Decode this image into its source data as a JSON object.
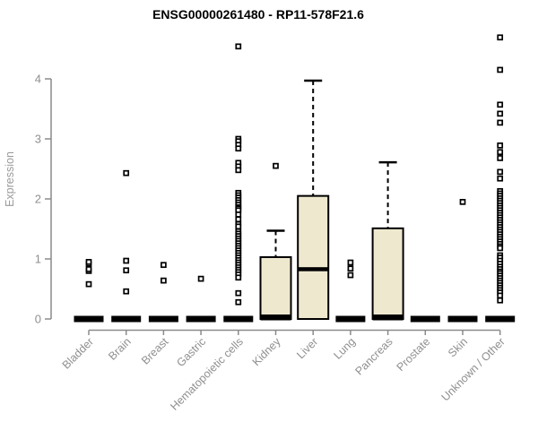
{
  "chart_data": {
    "type": "boxplot",
    "title": "ENSG00000261480 - RP11-578F21.6",
    "ylabel": "Expression",
    "xlabel": "",
    "yticks": [
      0,
      1,
      2,
      3,
      4
    ],
    "ylim": [
      0,
      4.75
    ],
    "grid": false,
    "legend": "none",
    "categories": [
      "Bladder",
      "Brain",
      "Breast",
      "Gastric",
      "Hematopoietic cells",
      "Kidney",
      "Liver",
      "Lung",
      "Pancreas",
      "Prostate",
      "Skin",
      "Unknown / Other"
    ],
    "boxes": [
      {
        "category": "Bladder",
        "q1": 0,
        "median": 0,
        "q3": 0,
        "whisker_low": 0,
        "whisker_high": 0,
        "outliers": [
          0.58,
          0.8,
          0.83,
          0.92,
          0.95
        ]
      },
      {
        "category": "Brain",
        "q1": 0,
        "median": 0,
        "q3": 0,
        "whisker_low": 0,
        "whisker_high": 0,
        "outliers": [
          0.46,
          0.81,
          0.97,
          2.43
        ]
      },
      {
        "category": "Breast",
        "q1": 0,
        "median": 0,
        "q3": 0,
        "whisker_low": 0,
        "whisker_high": 0,
        "outliers": [
          0.64,
          0.9
        ]
      },
      {
        "category": "Gastric",
        "q1": 0,
        "median": 0,
        "q3": 0,
        "whisker_low": 0,
        "whisker_high": 0,
        "outliers": [
          0.67
        ]
      },
      {
        "category": "Hematopoietic cells",
        "q1": 0,
        "median": 0,
        "q3": 0,
        "whisker_low": 0,
        "whisker_high": 0,
        "outliers": [
          4.54,
          3.0,
          2.96,
          2.9,
          2.84,
          2.6,
          2.54,
          2.48,
          2.1,
          2.06,
          2.02,
          1.98,
          1.94,
          1.9,
          1.86,
          1.84,
          1.81,
          1.74,
          1.66,
          1.58,
          1.54,
          1.46,
          1.42,
          1.38,
          1.34,
          1.3,
          1.26,
          1.22,
          1.18,
          1.14,
          1.1,
          1.06,
          1.02,
          0.98,
          0.94,
          0.9,
          0.86,
          0.82,
          0.78,
          0.74,
          0.69,
          0.43,
          0.28
        ]
      },
      {
        "category": "Kidney",
        "q1": 0,
        "median": 0.02,
        "q3": 1.03,
        "whisker_low": 0,
        "whisker_high": 1.47,
        "outliers": [
          2.55
        ]
      },
      {
        "category": "Liver",
        "q1": 0,
        "median": 0.83,
        "q3": 2.05,
        "whisker_low": 0,
        "whisker_high": 3.97,
        "outliers": []
      },
      {
        "category": "Lung",
        "q1": 0,
        "median": 0,
        "q3": 0,
        "whisker_low": 0,
        "whisker_high": 0,
        "outliers": [
          0.73,
          0.84,
          0.94
        ]
      },
      {
        "category": "Pancreas",
        "q1": 0,
        "median": 0.02,
        "q3": 1.51,
        "whisker_low": 0,
        "whisker_high": 2.61,
        "outliers": []
      },
      {
        "category": "Prostate",
        "q1": 0,
        "median": 0,
        "q3": 0,
        "whisker_low": 0,
        "whisker_high": 0,
        "outliers": []
      },
      {
        "category": "Skin",
        "q1": 0,
        "median": 0,
        "q3": 0,
        "whisker_low": 0,
        "whisker_high": 0,
        "outliers": [
          1.95
        ]
      },
      {
        "category": "Unknown / Other",
        "q1": 0,
        "median": 0,
        "q3": 0,
        "whisker_low": 0,
        "whisker_high": 0,
        "outliers": [
          4.69,
          4.15,
          3.57,
          3.42,
          3.27,
          2.89,
          2.78,
          2.68,
          2.45,
          2.34,
          2.13,
          2.09,
          2.05,
          2.01,
          1.97,
          1.93,
          1.89,
          1.85,
          1.81,
          1.77,
          1.73,
          1.69,
          1.65,
          1.61,
          1.57,
          1.53,
          1.49,
          1.45,
          1.41,
          1.37,
          1.33,
          1.29,
          1.25,
          1.21,
          1.18,
          1.06,
          1.02,
          0.97,
          0.92,
          0.87,
          0.83,
          0.79,
          0.76,
          0.72,
          0.68,
          0.64,
          0.6,
          0.56,
          0.52,
          0.48,
          0.44,
          0.39,
          0.31
        ]
      }
    ],
    "colors": {
      "box_fill": "#eee8cf",
      "box_stroke": "#000000",
      "median": "#000000",
      "whisker": "#000000",
      "outlier_stroke": "#000000",
      "outlier_fill": "#ffffff",
      "axis": "#8a8a8a",
      "tick_label": "#8f8f8f",
      "category_label": "#8f8f8f",
      "ylabel_color": "#9a9a9a",
      "title_color": "#000000",
      "background": "#ffffff"
    }
  }
}
